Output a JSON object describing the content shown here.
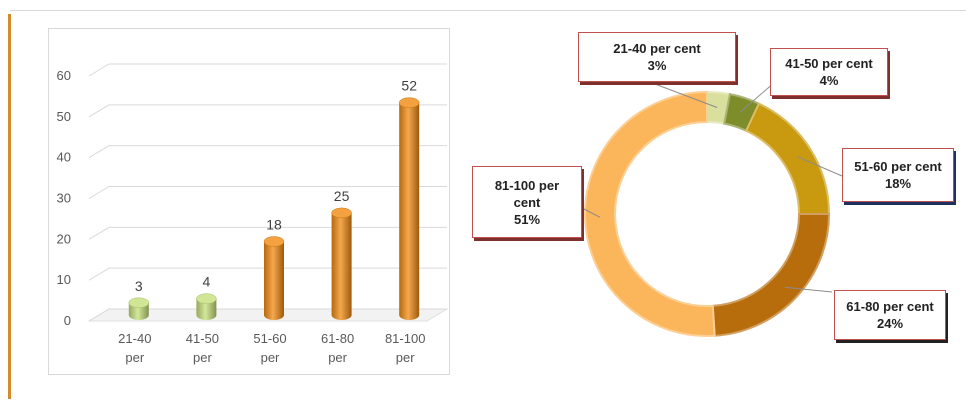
{
  "chart_data": [
    {
      "type": "bar",
      "title": "",
      "xlabel": "",
      "ylabel": "",
      "ylim": [
        0,
        60
      ],
      "yticks": [
        0,
        10,
        20,
        30,
        40,
        50,
        60
      ],
      "categories": [
        {
          "line1": "21-40",
          "line2": "per"
        },
        {
          "line1": "41-50",
          "line2": "per"
        },
        {
          "line1": "51-60",
          "line2": "per"
        },
        {
          "line1": "61-80",
          "line2": "per"
        },
        {
          "line1": "81-100",
          "line2": "per"
        }
      ],
      "values": [
        3,
        4,
        18,
        25,
        52
      ],
      "colors": [
        "#c6e07a",
        "#c6e07a",
        "#f18b12",
        "#f18b12",
        "#f18b12"
      ],
      "grid": true
    },
    {
      "type": "pie",
      "title": "",
      "slices": [
        {
          "label": "21-40 per cent",
          "percent": "3%",
          "value": 3,
          "color": "#d9df9c"
        },
        {
          "label": "41-50 per cent",
          "percent": "4%",
          "value": 4,
          "color": "#7f8c2a"
        },
        {
          "label": "51-60 per cent",
          "percent": "18%",
          "value": 18,
          "color": "#c99a10"
        },
        {
          "label": "61-80 per cent",
          "percent": "24%",
          "value": 24,
          "color": "#b86d0c"
        },
        {
          "label": "81-100 per",
          "label2": "cent",
          "percent": "51%",
          "value": 51,
          "color": "#fbb55b"
        }
      ]
    }
  ]
}
